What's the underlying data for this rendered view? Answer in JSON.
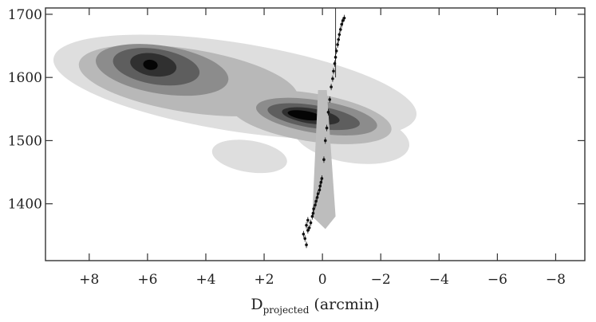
{
  "chart_data": {
    "type": "contour",
    "xlabel_main": "D",
    "xlabel_sub": "projected",
    "xlabel_unit": "(arcmin)",
    "ylabel": "",
    "x_reversed": true,
    "xlim": [
      9.5,
      -9
    ],
    "ylim": [
      1310,
      1710
    ],
    "x_ticks": [
      8,
      6,
      4,
      2,
      0,
      -2,
      -4,
      -6,
      -8
    ],
    "x_tick_labels": [
      "+8",
      "+6",
      "+4",
      "+2",
      "0",
      "−2",
      "−4",
      "−6",
      "−8"
    ],
    "y_ticks": [
      1400,
      1500,
      1600,
      1700
    ],
    "y_tick_labels": [
      "1400",
      "1500",
      "1600",
      "1700"
    ],
    "contour_levels": [
      {
        "level": 1,
        "color": "#dedede",
        "blobs": [
          {
            "cx": 3.0,
            "cy": 1585,
            "rx": 6.3,
            "ry": 70
          },
          {
            "cx": -1.0,
            "cy": 1505,
            "rx": 2.0,
            "ry": 40
          },
          {
            "cx": 2.5,
            "cy": 1475,
            "rx": 1.3,
            "ry": 25
          }
        ]
      },
      {
        "level": 2,
        "color": "#b8b8b8",
        "blobs": [
          {
            "cx": 4.6,
            "cy": 1595,
            "rx": 3.8,
            "ry": 50
          },
          {
            "cx": 0.4,
            "cy": 1537,
            "rx": 2.8,
            "ry": 38
          }
        ]
      },
      {
        "level": 3,
        "color": "#8c8c8c",
        "blobs": [
          {
            "cx": 5.5,
            "cy": 1612,
            "rx": 2.3,
            "ry": 38
          },
          {
            "cx": 0.2,
            "cy": 1538,
            "rx": 2.1,
            "ry": 26
          }
        ]
      },
      {
        "level": 4,
        "color": "#5e5e5e",
        "blobs": [
          {
            "cx": 5.7,
            "cy": 1617,
            "rx": 1.5,
            "ry": 28
          },
          {
            "cx": 0.3,
            "cy": 1538,
            "rx": 1.6,
            "ry": 18
          }
        ]
      },
      {
        "level": 5,
        "color": "#303030",
        "blobs": [
          {
            "cx": 5.8,
            "cy": 1620,
            "rx": 0.8,
            "ry": 18
          },
          {
            "cx": 0.4,
            "cy": 1539,
            "rx": 1.0,
            "ry": 12
          }
        ]
      },
      {
        "level": 6,
        "color": "#050505",
        "blobs": [
          {
            "cx": 5.9,
            "cy": 1620,
            "rx": 0.25,
            "ry": 8
          },
          {
            "cx": 0.6,
            "cy": 1540,
            "rx": 0.6,
            "ry": 7
          }
        ]
      }
    ],
    "wedge": {
      "color": "#bdbdbd",
      "points": [
        [
          0.15,
          1580
        ],
        [
          -0.15,
          1580
        ],
        [
          -0.45,
          1380
        ],
        [
          -0.1,
          1360
        ],
        [
          0.35,
          1380
        ]
      ]
    },
    "points": [
      {
        "x": 0.55,
        "y": 1335
      },
      {
        "x": 0.6,
        "y": 1345
      },
      {
        "x": 0.65,
        "y": 1352
      },
      {
        "x": 0.5,
        "y": 1358
      },
      {
        "x": 0.45,
        "y": 1362
      },
      {
        "x": 0.55,
        "y": 1366
      },
      {
        "x": 0.4,
        "y": 1370
      },
      {
        "x": 0.5,
        "y": 1374
      },
      {
        "x": 0.35,
        "y": 1380
      },
      {
        "x": 0.32,
        "y": 1385
      },
      {
        "x": 0.3,
        "y": 1392
      },
      {
        "x": 0.25,
        "y": 1398
      },
      {
        "x": 0.22,
        "y": 1404
      },
      {
        "x": 0.18,
        "y": 1410
      },
      {
        "x": 0.15,
        "y": 1416
      },
      {
        "x": 0.1,
        "y": 1422
      },
      {
        "x": 0.08,
        "y": 1428
      },
      {
        "x": 0.05,
        "y": 1434
      },
      {
        "x": 0.02,
        "y": 1440
      },
      {
        "x": -0.05,
        "y": 1470
      },
      {
        "x": -0.1,
        "y": 1500
      },
      {
        "x": -0.15,
        "y": 1520
      },
      {
        "x": -0.2,
        "y": 1545
      },
      {
        "x": -0.25,
        "y": 1565
      },
      {
        "x": -0.3,
        "y": 1585
      },
      {
        "x": -0.35,
        "y": 1598
      },
      {
        "x": -0.38,
        "y": 1610
      },
      {
        "x": -0.42,
        "y": 1622
      },
      {
        "x": -0.45,
        "y": 1632
      },
      {
        "x": -0.48,
        "y": 1642
      },
      {
        "x": -0.52,
        "y": 1652
      },
      {
        "x": -0.55,
        "y": 1660
      },
      {
        "x": -0.58,
        "y": 1668
      },
      {
        "x": -0.62,
        "y": 1676
      },
      {
        "x": -0.66,
        "y": 1684
      },
      {
        "x": -0.7,
        "y": 1690
      },
      {
        "x": -0.75,
        "y": 1694
      }
    ],
    "vertical_line": {
      "x": -0.45,
      "y0": 1600,
      "y1": 1710
    }
  }
}
